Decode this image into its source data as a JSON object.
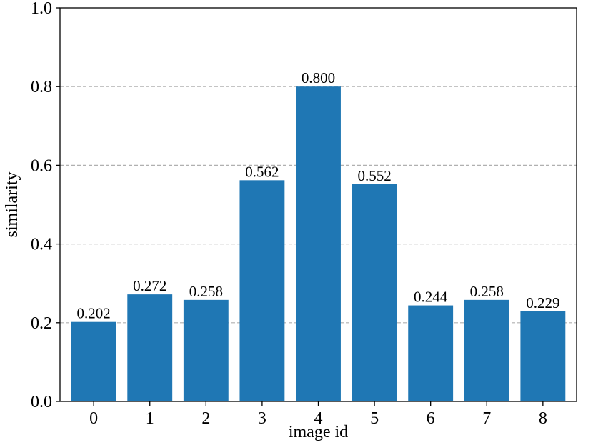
{
  "chart_data": {
    "type": "bar",
    "categories": [
      "0",
      "1",
      "2",
      "3",
      "4",
      "5",
      "6",
      "7",
      "8"
    ],
    "values": [
      0.202,
      0.272,
      0.258,
      0.562,
      0.8,
      0.552,
      0.244,
      0.258,
      0.229
    ],
    "value_labels": [
      "0.202",
      "0.272",
      "0.258",
      "0.562",
      "0.800",
      "0.552",
      "0.244",
      "0.258",
      "0.229"
    ],
    "xlabel": "image id",
    "ylabel": "similarity",
    "ylim": [
      0,
      1.0
    ],
    "yticks": [
      0.0,
      0.2,
      0.4,
      0.6,
      0.8,
      1.0
    ],
    "ytick_labels": [
      "0.0",
      "0.2",
      "0.4",
      "0.6",
      "0.8",
      "1.0"
    ],
    "grid": "horizontal dashed",
    "bar_color": "#1f77b4",
    "grid_color": "#b0b0b0"
  }
}
